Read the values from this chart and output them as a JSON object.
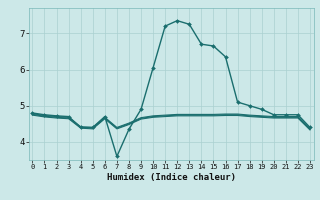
{
  "xlabel": "Humidex (Indice chaleur)",
  "bg_color": "#cce8e8",
  "line_color": "#1a6e6e",
  "grid_major_color": "#aad0d0",
  "grid_minor_color": "#ddf0f0",
  "x_ticks": [
    0,
    1,
    2,
    3,
    4,
    5,
    6,
    7,
    8,
    9,
    10,
    11,
    12,
    13,
    14,
    15,
    16,
    17,
    18,
    19,
    20,
    21,
    22,
    23
  ],
  "y_ticks": [
    4,
    5,
    6,
    7
  ],
  "ylim": [
    3.5,
    7.7
  ],
  "xlim": [
    -0.3,
    23.3
  ],
  "lines": [
    {
      "x": [
        0,
        1,
        2,
        3,
        4,
        5,
        6,
        7,
        8,
        9,
        10,
        11,
        12,
        13,
        14,
        15,
        16,
        17,
        18,
        19,
        20,
        21,
        22,
        23
      ],
      "y": [
        4.8,
        4.75,
        4.72,
        4.7,
        4.4,
        4.4,
        4.7,
        3.6,
        4.35,
        4.9,
        6.05,
        7.2,
        7.35,
        7.25,
        6.7,
        6.65,
        6.35,
        5.1,
        5.0,
        4.9,
        4.75,
        4.75,
        4.75,
        4.4
      ],
      "marker": true,
      "linewidth": 1.0
    },
    {
      "x": [
        0,
        1,
        2,
        3,
        4,
        5,
        6,
        7,
        8,
        9,
        10,
        11,
        12,
        13,
        14,
        15,
        16,
        17,
        18,
        19,
        20,
        21,
        22,
        23
      ],
      "y": [
        4.78,
        4.73,
        4.7,
        4.68,
        4.42,
        4.4,
        4.68,
        4.4,
        4.52,
        4.67,
        4.72,
        4.74,
        4.76,
        4.76,
        4.76,
        4.76,
        4.77,
        4.77,
        4.74,
        4.72,
        4.7,
        4.7,
        4.7,
        4.37
      ],
      "marker": false,
      "linewidth": 0.8
    },
    {
      "x": [
        0,
        1,
        2,
        3,
        4,
        5,
        6,
        7,
        8,
        9,
        10,
        11,
        12,
        13,
        14,
        15,
        16,
        17,
        18,
        19,
        20,
        21,
        22,
        23
      ],
      "y": [
        4.76,
        4.71,
        4.68,
        4.66,
        4.4,
        4.38,
        4.66,
        4.38,
        4.5,
        4.65,
        4.7,
        4.72,
        4.74,
        4.74,
        4.74,
        4.74,
        4.75,
        4.75,
        4.72,
        4.7,
        4.68,
        4.68,
        4.68,
        4.35
      ],
      "marker": false,
      "linewidth": 0.8
    },
    {
      "x": [
        0,
        1,
        2,
        3,
        4,
        5,
        6,
        7,
        8,
        9,
        10,
        11,
        12,
        13,
        14,
        15,
        16,
        17,
        18,
        19,
        20,
        21,
        22,
        23
      ],
      "y": [
        4.74,
        4.69,
        4.66,
        4.64,
        4.38,
        4.36,
        4.64,
        4.36,
        4.48,
        4.63,
        4.68,
        4.7,
        4.72,
        4.72,
        4.72,
        4.72,
        4.73,
        4.73,
        4.7,
        4.68,
        4.66,
        4.66,
        4.66,
        4.33
      ],
      "marker": false,
      "linewidth": 0.8
    }
  ]
}
